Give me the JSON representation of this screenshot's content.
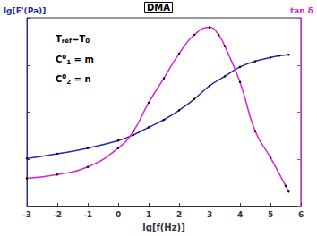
{
  "chart_data": {
    "type": "line",
    "title": "DMA",
    "x_label": "lg[f(Hz)]",
    "y_label": "lg[E'(Pa)]",
    "y2_label": "tan δ",
    "annotations": [
      [
        {
          "t": "T"
        },
        {
          "t": "réf",
          "sub": true
        },
        {
          "t": "=T"
        },
        {
          "t": "0",
          "sub": true
        }
      ],
      [
        {
          "t": "C"
        },
        {
          "t": "0",
          "sup": true
        },
        {
          "t": "1",
          "sub": true
        },
        {
          "t": " = m"
        }
      ],
      [
        {
          "t": "C"
        },
        {
          "t": "0",
          "sup": true
        },
        {
          "t": "2",
          "sub": true
        },
        {
          "t": " = n"
        }
      ]
    ],
    "xlim": [
      -3,
      6
    ],
    "xticks": [
      -3,
      -2,
      -1,
      0,
      1,
      2,
      3,
      4,
      5,
      6
    ],
    "ylim": [
      0,
      100
    ],
    "yticks": [
      0,
      25,
      50,
      75,
      100
    ],
    "y2lim": [
      0,
      100
    ],
    "y2ticks": [
      0,
      25,
      50,
      75,
      100
    ],
    "tick_labels": "x",
    "grid": false,
    "series": [
      {
        "name": "lg[E'(Pa)]",
        "color": "#2a2aa8",
        "marker": "dot",
        "line_style": "solid",
        "x": [
          -3,
          -2,
          -1,
          0,
          0.5,
          1,
          1.5,
          2,
          2.5,
          3,
          3.5,
          4,
          4.5,
          5,
          5.3,
          5.6
        ],
        "values": [
          25.5,
          28,
          31,
          35,
          38,
          42,
          46,
          51,
          57,
          64,
          69,
          74,
          77,
          79,
          80,
          80.5
        ]
      },
      {
        "name": "tan δ",
        "color": "#e020e0",
        "marker": "dot",
        "line_style": "solid",
        "axis": "y2",
        "x": [
          -3,
          -2,
          -1,
          0,
          0.5,
          1,
          1.5,
          2,
          2.5,
          3,
          3.3,
          3.5,
          4,
          4.5,
          5,
          5.5,
          5.6
        ],
        "values": [
          15,
          17,
          21,
          31,
          40,
          55,
          68,
          81,
          91,
          95,
          91,
          85,
          66,
          40,
          26,
          11,
          8
        ]
      }
    ]
  }
}
